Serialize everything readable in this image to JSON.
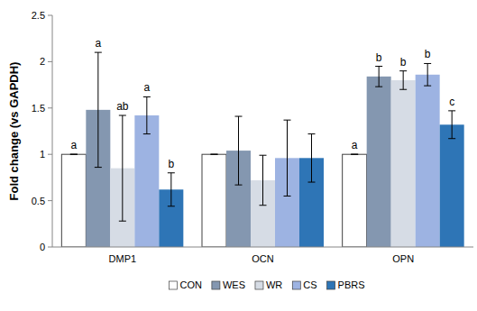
{
  "chart_data": {
    "type": "bar",
    "y_label": "Fold change (vs GAPDH)",
    "categories": [
      "DMP1",
      "OCN",
      "OPN"
    ],
    "series": [
      {
        "name": "CON",
        "color": "#ffffff",
        "values": [
          1.0,
          1.0,
          1.0
        ],
        "errors": [
          0,
          0,
          0
        ],
        "letters": [
          "a",
          null,
          "a"
        ]
      },
      {
        "name": "WES",
        "color": "#8497b0",
        "values": [
          1.48,
          1.04,
          1.84
        ],
        "errors": [
          0.62,
          0.37,
          0.11
        ],
        "letters": [
          "a",
          null,
          "b"
        ]
      },
      {
        "name": "WR",
        "color": "#d6dce5",
        "values": [
          0.85,
          0.72,
          1.8
        ],
        "errors": [
          0.57,
          0.27,
          0.1
        ],
        "letters": [
          "ab",
          null,
          "b"
        ]
      },
      {
        "name": "CS",
        "color": "#9db3e2",
        "values": [
          1.42,
          0.96,
          1.86
        ],
        "errors": [
          0.2,
          0.41,
          0.12
        ],
        "letters": [
          "a",
          null,
          "b"
        ]
      },
      {
        "name": "PBRS",
        "color": "#2e75b6",
        "values": [
          0.62,
          0.96,
          1.32
        ],
        "errors": [
          0.18,
          0.26,
          0.15
        ],
        "letters": [
          "b",
          null,
          "c"
        ]
      }
    ],
    "ylim": [
      0,
      2.5
    ],
    "yticks": [
      0,
      0.5,
      1,
      1.5,
      2,
      2.5
    ],
    "grid": false,
    "legend": "bottom"
  }
}
